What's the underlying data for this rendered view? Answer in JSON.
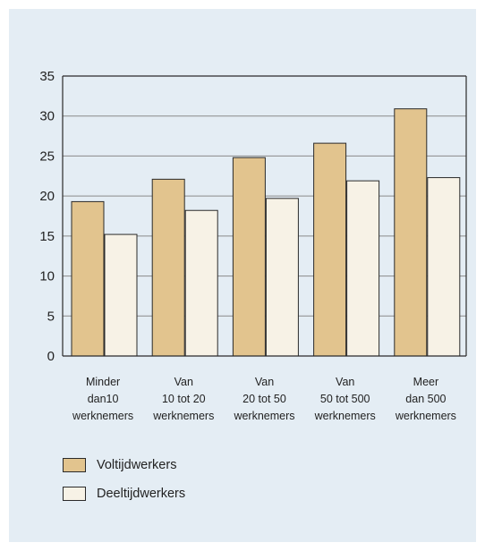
{
  "chart_data": {
    "type": "bar",
    "categories": [
      [
        "Minder",
        "dan10",
        "werknemers"
      ],
      [
        "Van",
        "10 tot 20",
        "werknemers"
      ],
      [
        "Van",
        "20 tot 50",
        "werknemers"
      ],
      [
        "Van",
        "50 tot 500",
        "werknemers"
      ],
      [
        "Meer",
        "dan 500",
        "werknemers"
      ]
    ],
    "series": [
      {
        "name": "Voltijdwerkers",
        "color": "#e2c48e",
        "values": [
          19.3,
          22.1,
          24.8,
          26.6,
          30.9
        ]
      },
      {
        "name": "Deeltijdwerkers",
        "color": "#f7f2e6",
        "values": [
          15.2,
          18.2,
          19.7,
          21.9,
          22.3
        ]
      }
    ],
    "ylim": [
      0,
      35
    ],
    "yticks": [
      0,
      5,
      10,
      15,
      20,
      25,
      30,
      35
    ],
    "grid": true,
    "legend_position": "bottom-left",
    "background": "#e4edf4"
  },
  "legend": [
    {
      "label": "Voltijdwerkers",
      "color": "#e2c48e"
    },
    {
      "label": "Deeltijdwerkers",
      "color": "#f7f2e6"
    }
  ]
}
